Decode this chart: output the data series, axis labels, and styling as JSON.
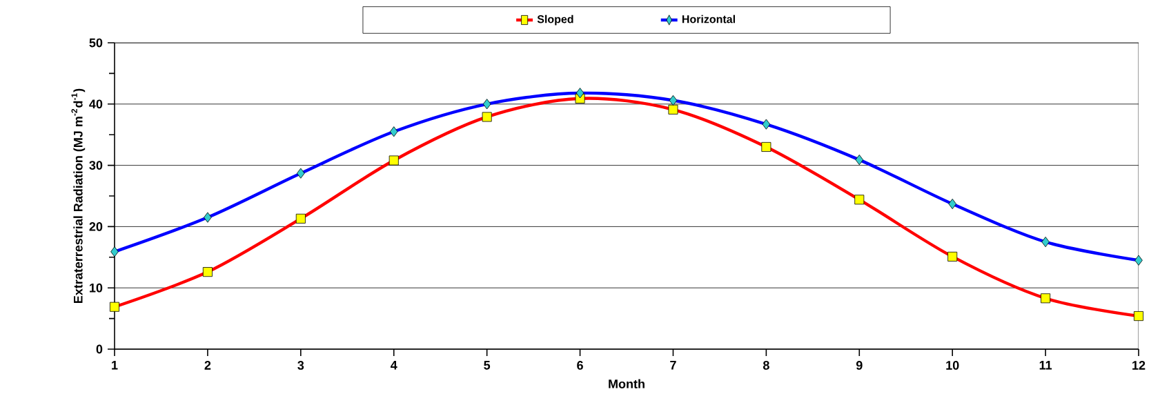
{
  "chart_data": {
    "type": "line",
    "xlabel": "Month",
    "ylabel": "Extraterrestrial Radiation  (MJ m$^{-2}$d$^{-1}$)",
    "x": [
      1,
      2,
      3,
      4,
      5,
      6,
      7,
      8,
      9,
      10,
      11,
      12
    ],
    "series": [
      {
        "name": "Sloped",
        "color": "#ff0000",
        "marker": "square",
        "values": [
          6.9,
          12.6,
          21.3,
          30.8,
          37.9,
          40.9,
          39.1,
          33.0,
          24.4,
          15.1,
          8.3,
          5.4
        ]
      },
      {
        "name": "Horizontal",
        "color": "#0000ff",
        "marker": "diamond",
        "values": [
          15.9,
          21.5,
          28.7,
          35.5,
          40.0,
          41.8,
          40.6,
          36.7,
          30.9,
          23.7,
          17.5,
          14.5
        ]
      }
    ],
    "xlim": [
      1,
      12
    ],
    "xticks": [
      1,
      2,
      3,
      4,
      5,
      6,
      7,
      8,
      9,
      10,
      11,
      12
    ],
    "ylim": [
      0,
      50
    ],
    "yticks": [
      0,
      {
        "value": 5,
        "label": null
      },
      10,
      {
        "value": 15,
        "label": null
      },
      20,
      {
        "value": 25,
        "label": null
      },
      30,
      {
        "value": 35,
        "label": null
      },
      40,
      {
        "value": 45,
        "label": null
      },
      50
    ],
    "grid": "y",
    "legend": "top",
    "line_style": "solid"
  }
}
